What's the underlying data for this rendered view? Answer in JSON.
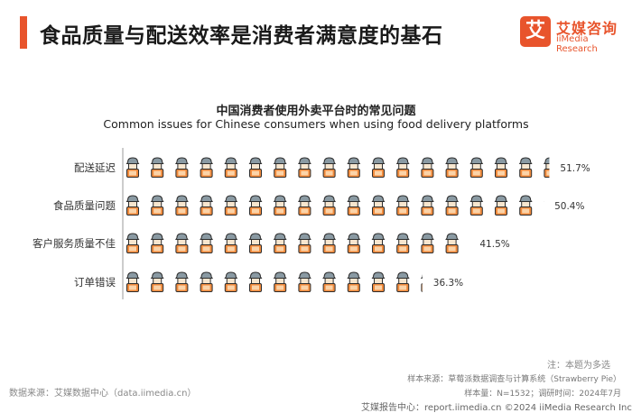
{
  "header": {
    "title": "食品质量与配送效率是消费者满意度的基石",
    "accent_color": "#e8542c"
  },
  "logo": {
    "mark": "艾",
    "name_cn": "艾媒咨询",
    "name_en": "iiMedia Research",
    "color": "#e8542c"
  },
  "chart_data": {
    "type": "bar",
    "title": "中国消费者使用外卖平台时的常见问题",
    "subtitle": "Common issues for Chinese consumers when using food delivery platforms",
    "categories": [
      "配送延迟",
      "食品质量问题",
      "客户服务质量不佳",
      "订单错误"
    ],
    "values": [
      51.7,
      50.4,
      41.5,
      36.3
    ],
    "value_labels": [
      "51.7%",
      "50.4%",
      "41.5%",
      "36.3%"
    ],
    "unit": "%",
    "icon": "delivery-person-icon",
    "icon_colors": {
      "cap": "#8a9aa3",
      "face": "#f7e6cf",
      "body": "#f08a3c",
      "outline": "#2d2d2d"
    },
    "axis_color": "#999999"
  },
  "footer": {
    "note": "注：本题为多选",
    "sample_source": "样本来源：草莓派数据调查与计算系统（Strawberry Pie）",
    "sample_info": "样本量：N=1532；调研时间：2024年7月",
    "data_source": "数据来源：艾媒数据中心（data.iimedia.cn）",
    "report": "艾媒报告中心：report.iimedia.cn  ©2024  iiMedia Research  Inc"
  }
}
